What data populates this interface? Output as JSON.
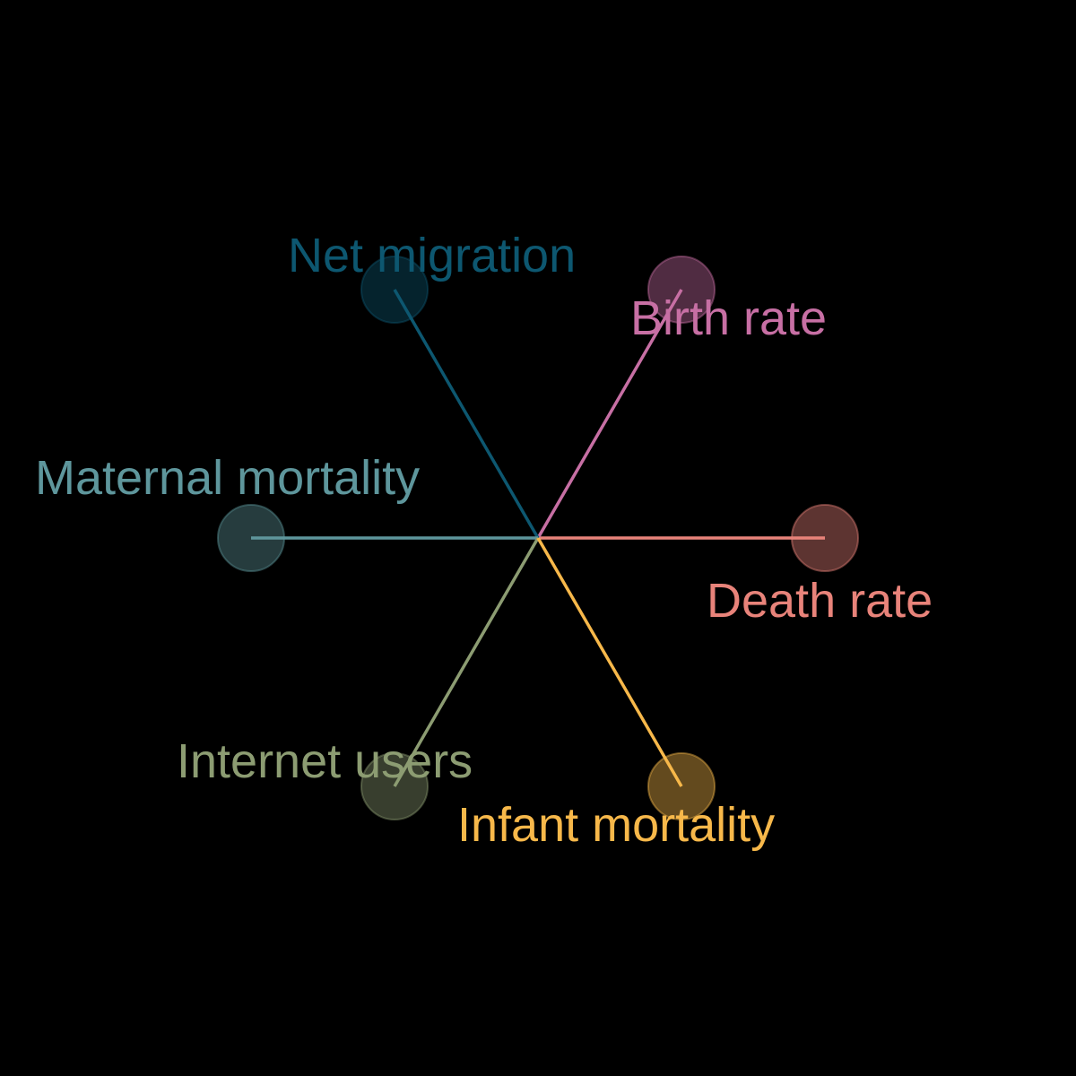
{
  "diagram": {
    "background": "#000000",
    "spokes": [
      {
        "label": "Death rate",
        "color": "#e8837a"
      },
      {
        "label": "Birth rate",
        "color": "#c76fa4"
      },
      {
        "label": "Net migration",
        "color": "#0d5770"
      },
      {
        "label": "Maternal mortality",
        "color": "#5e969c"
      },
      {
        "label": "Internet users",
        "color": "#8c9c72"
      },
      {
        "label": "Infant mortality",
        "color": "#f7b84a"
      }
    ]
  }
}
